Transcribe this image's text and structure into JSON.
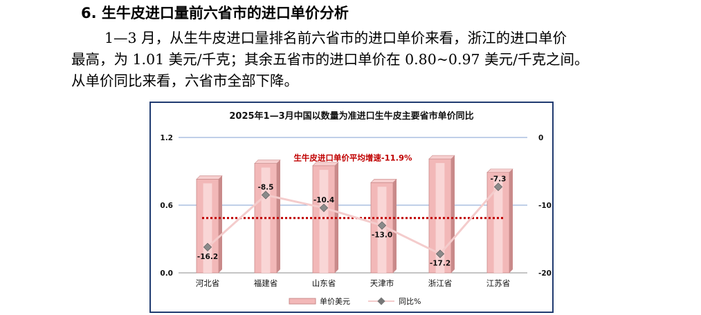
{
  "section": {
    "heading": "6. 生牛皮进口量前六省市的进口单价分析",
    "paragraph_lines": [
      "1—3 月，从生牛皮进口量排名前六省市的进口单价来看，浙江的进口单价",
      "最高，为 1.01 美元/千克；其余五省市的进口单价在 0.80~0.97 美元/千克之间。",
      "从单价同比来看，六省市全部下降。"
    ]
  },
  "chart_data": {
    "type": "bar",
    "title": "2025年1—3月中国以数量为准进口生牛皮主要省市单价同比",
    "categories": [
      "河北省",
      "福建省",
      "山东省",
      "天津市",
      "浙江省",
      "江苏省"
    ],
    "series": [
      {
        "name": "单价美元",
        "kind": "bar",
        "axis": "left",
        "values": [
          0.83,
          0.97,
          0.95,
          0.8,
          1.01,
          0.89
        ]
      },
      {
        "name": "同比%",
        "kind": "line",
        "axis": "right",
        "values": [
          -16.2,
          -8.5,
          -10.4,
          -13.0,
          -17.2,
          -7.3
        ]
      }
    ],
    "y_left": {
      "ticks": [
        "0.0",
        "0.6",
        "1.2"
      ],
      "min": 0,
      "max": 1.2
    },
    "y_right": {
      "ticks": [
        "0",
        "-10",
        "-20"
      ],
      "min": -20,
      "max": 0
    },
    "average_line": {
      "label": "生牛皮进口单价平均增速-11.9%",
      "value": -11.9
    },
    "grid": true,
    "legend": "bottom",
    "colors": {
      "bar": "#f2b8b8",
      "bar_dark": "#c98a8a",
      "line": "#f4cccc",
      "average": "#c00000",
      "grid": "#7f9fd0",
      "border": "#1f3a70"
    }
  }
}
